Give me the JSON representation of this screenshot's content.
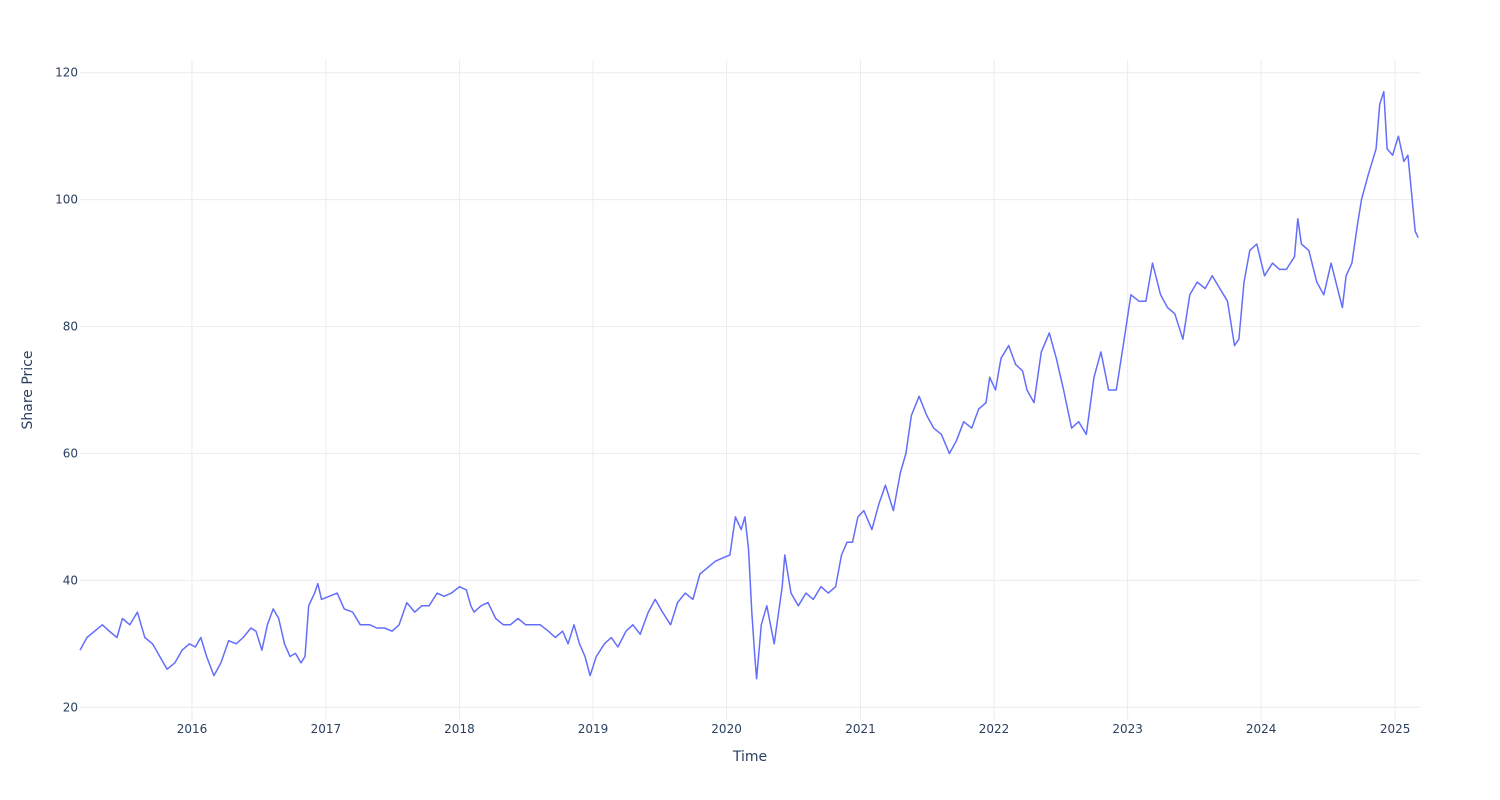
{
  "chart_data": {
    "type": "line",
    "title": "",
    "xlabel": "Time",
    "ylabel": "Share Price",
    "grid": true,
    "legend": "none",
    "line_color": "#636efa",
    "text_color": "#2a3f5f",
    "grid_color": "#ececf1",
    "xlim": [
      "2015-03-01",
      "2025-03-10"
    ],
    "ylim": [
      18,
      122
    ],
    "x_ticks": [
      "2016-01-01",
      "2017-01-01",
      "2018-01-01",
      "2019-01-01",
      "2020-01-01",
      "2021-01-01",
      "2022-01-01",
      "2023-01-01",
      "2024-01-01",
      "2025-01-01"
    ],
    "x_tick_labels": [
      "2016",
      "2017",
      "2018",
      "2019",
      "2020",
      "2021",
      "2022",
      "2023",
      "2024",
      "2025"
    ],
    "y_ticks": [
      20,
      40,
      60,
      80,
      100,
      120
    ],
    "y_tick_labels": [
      "20",
      "40",
      "60",
      "80",
      "100",
      "120"
    ],
    "series": [
      {
        "x": [
          "2015-03-01",
          "2015-03-20",
          "2015-04-10",
          "2015-05-01",
          "2015-05-20",
          "2015-06-10",
          "2015-06-25",
          "2015-07-15",
          "2015-08-05",
          "2015-08-25",
          "2015-09-15",
          "2015-10-05",
          "2015-10-25",
          "2015-11-15",
          "2015-12-05",
          "2015-12-25",
          "2016-01-10",
          "2016-01-25",
          "2016-02-10",
          "2016-03-01",
          "2016-03-20",
          "2016-04-10",
          "2016-05-01",
          "2016-05-20",
          "2016-06-10",
          "2016-06-24",
          "2016-07-10",
          "2016-07-25",
          "2016-08-10",
          "2016-08-25",
          "2016-09-10",
          "2016-09-25",
          "2016-10-10",
          "2016-10-25",
          "2016-11-05",
          "2016-11-15",
          "2016-12-01",
          "2016-12-10",
          "2016-12-20",
          "2017-01-10",
          "2017-02-01",
          "2017-02-20",
          "2017-03-15",
          "2017-04-05",
          "2017-05-01",
          "2017-05-20",
          "2017-06-10",
          "2017-07-01",
          "2017-07-20",
          "2017-08-10",
          "2017-09-01",
          "2017-09-20",
          "2017-10-10",
          "2017-11-01",
          "2017-11-20",
          "2017-12-10",
          "2018-01-01",
          "2018-01-20",
          "2018-02-01",
          "2018-02-10",
          "2018-03-01",
          "2018-03-20",
          "2018-04-10",
          "2018-05-01",
          "2018-05-20",
          "2018-06-10",
          "2018-07-01",
          "2018-07-20",
          "2018-08-10",
          "2018-09-01",
          "2018-09-20",
          "2018-10-10",
          "2018-10-25",
          "2018-11-10",
          "2018-11-25",
          "2018-12-10",
          "2018-12-24",
          "2019-01-10",
          "2019-02-01",
          "2019-02-20",
          "2019-03-10",
          "2019-04-01",
          "2019-04-20",
          "2019-05-10",
          "2019-06-01",
          "2019-06-20",
          "2019-07-10",
          "2019-08-01",
          "2019-08-20",
          "2019-09-10",
          "2019-10-01",
          "2019-10-20",
          "2019-11-10",
          "2019-12-01",
          "2019-12-20",
          "2020-01-10",
          "2020-01-25",
          "2020-02-10",
          "2020-02-20",
          "2020-03-01",
          "2020-03-10",
          "2020-03-18",
          "2020-03-23",
          "2020-04-05",
          "2020-04-20",
          "2020-05-10",
          "2020-06-01",
          "2020-06-08",
          "2020-06-25",
          "2020-07-15",
          "2020-08-05",
          "2020-08-25",
          "2020-09-15",
          "2020-10-05",
          "2020-10-25",
          "2020-11-10",
          "2020-11-25",
          "2020-12-10",
          "2020-12-25",
          "2021-01-10",
          "2021-02-01",
          "2021-02-20",
          "2021-03-10",
          "2021-04-01",
          "2021-04-20",
          "2021-05-05",
          "2021-05-20",
          "2021-06-10",
          "2021-07-01",
          "2021-07-20",
          "2021-08-10",
          "2021-09-01",
          "2021-09-20",
          "2021-10-10",
          "2021-11-01",
          "2021-11-20",
          "2021-12-10",
          "2021-12-20",
          "2022-01-05",
          "2022-01-20",
          "2022-02-10",
          "2022-03-01",
          "2022-03-20",
          "2022-04-01",
          "2022-04-20",
          "2022-05-10",
          "2022-06-01",
          "2022-06-20",
          "2022-07-10",
          "2022-08-01",
          "2022-08-20",
          "2022-09-10",
          "2022-10-01",
          "2022-10-20",
          "2022-11-10",
          "2022-12-01",
          "2022-12-20",
          "2023-01-10",
          "2023-02-01",
          "2023-02-20",
          "2023-03-10",
          "2023-04-01",
          "2023-04-20",
          "2023-05-10",
          "2023-06-01",
          "2023-06-20",
          "2023-07-10",
          "2023-08-01",
          "2023-08-20",
          "2023-09-10",
          "2023-10-01",
          "2023-10-20",
          "2023-11-01",
          "2023-11-15",
          "2023-12-01",
          "2023-12-20",
          "2024-01-10",
          "2024-02-01",
          "2024-02-20",
          "2024-03-10",
          "2024-04-01",
          "2024-04-10",
          "2024-04-20",
          "2024-05-10",
          "2024-06-01",
          "2024-06-20",
          "2024-07-10",
          "2024-08-01",
          "2024-08-10",
          "2024-08-20",
          "2024-09-05",
          "2024-09-20",
          "2024-10-01",
          "2024-10-20",
          "2024-11-10",
          "2024-11-20",
          "2024-12-01",
          "2024-12-10",
          "2024-12-25",
          "2025-01-10",
          "2025-01-25",
          "2025-02-05",
          "2025-02-15",
          "2025-02-25",
          "2025-03-05"
        ],
        "y": [
          29,
          31,
          32,
          33,
          32,
          31,
          34,
          33,
          35,
          31,
          30,
          28,
          26,
          27,
          29,
          30,
          29.5,
          31,
          28,
          25,
          27,
          30.5,
          30,
          31,
          32.5,
          32,
          29,
          33,
          35.5,
          34,
          30,
          28,
          28.5,
          27,
          28,
          36,
          38,
          39.5,
          37,
          37.5,
          38,
          35.5,
          35,
          33,
          33,
          32.5,
          32.5,
          32,
          33,
          36.5,
          35,
          36,
          36,
          38,
          37.5,
          38,
          39,
          38.5,
          36,
          35,
          36,
          36.5,
          34,
          33,
          33,
          34,
          33,
          33,
          33,
          32,
          31,
          32,
          30,
          33,
          30,
          28,
          25,
          28,
          30,
          31,
          29.5,
          32,
          33,
          31.5,
          35,
          37,
          35,
          33,
          36.5,
          38,
          37,
          41,
          42,
          43,
          43.5,
          44,
          50,
          48,
          50,
          45,
          35,
          28,
          24.5,
          33,
          36,
          30,
          39,
          44,
          38,
          36,
          38,
          37,
          39,
          38,
          39,
          44,
          46,
          46,
          50,
          51,
          48,
          52,
          55,
          51,
          57,
          60,
          66,
          69,
          66,
          64,
          63,
          60,
          62,
          65,
          64,
          67,
          68,
          72,
          70,
          75,
          77,
          74,
          73,
          70,
          68,
          76,
          79,
          75,
          70,
          64,
          65,
          63,
          72,
          76,
          70,
          70,
          77,
          85,
          84,
          84,
          90,
          85,
          83,
          82,
          78,
          85,
          87,
          86,
          88,
          86,
          84,
          77,
          78,
          87,
          92,
          93,
          88,
          90,
          89,
          89,
          91,
          97,
          93,
          92,
          87,
          85,
          90,
          85,
          83,
          88,
          90,
          96,
          100,
          104,
          108,
          115,
          117,
          108,
          107,
          110,
          106,
          107,
          101,
          95,
          94
        ]
      }
    ]
  }
}
